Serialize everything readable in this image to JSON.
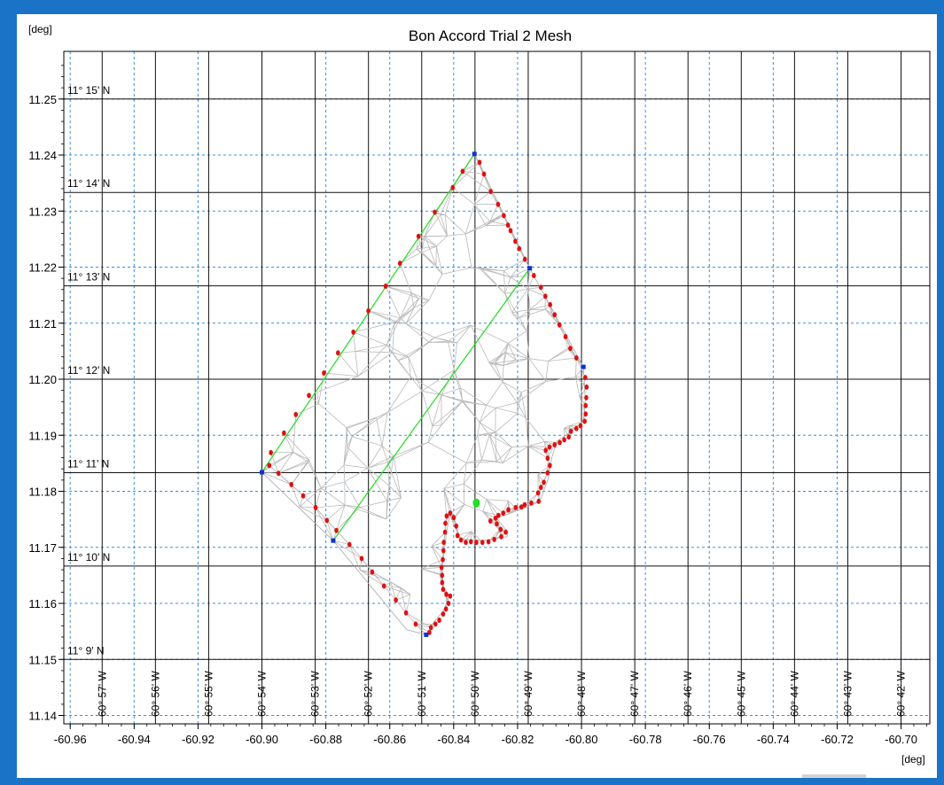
{
  "chart_data": {
    "type": "scatter",
    "title": "Bon Accord Trial 2 Mesh",
    "xlabel": "[deg]",
    "ylabel": "[deg]",
    "xlim": [
      -60.962,
      -60.691
    ],
    "ylim": [
      11.1385,
      11.2585
    ],
    "x_ticks": [
      -60.96,
      -60.94,
      -60.92,
      -60.9,
      -60.88,
      -60.86,
      -60.84,
      -60.82,
      -60.8,
      -60.78,
      -60.76,
      -60.74,
      -60.72,
      -60.7
    ],
    "x_tick_labels": [
      "-60.96",
      "-60.94",
      "-60.92",
      "-60.90",
      "-60.88",
      "-60.86",
      "-60.84",
      "-60.82",
      "-60.80",
      "-60.78",
      "-60.76",
      "-60.74",
      "-60.72",
      "-60.70"
    ],
    "y_ticks": [
      11.14,
      11.15,
      11.16,
      11.17,
      11.18,
      11.19,
      11.2,
      11.21,
      11.22,
      11.23,
      11.24,
      11.25
    ],
    "y_tick_labels": [
      "11.14",
      "11.15",
      "11.16",
      "11.17",
      "11.18",
      "11.19",
      "11.20",
      "11.21",
      "11.22",
      "11.23",
      "11.24",
      "11.25"
    ],
    "grid": true,
    "lat_lines": [
      {
        "value": 11.25,
        "label": "11° 15' N"
      },
      {
        "value": 11.23333,
        "label": "11° 14' N"
      },
      {
        "value": 11.21667,
        "label": "11° 13' N"
      },
      {
        "value": 11.2,
        "label": "11° 12' N"
      },
      {
        "value": 11.18333,
        "label": "11° 11' N"
      },
      {
        "value": 11.16667,
        "label": "11° 10' N"
      },
      {
        "value": 11.15,
        "label": "11° 9' N"
      }
    ],
    "lon_lines": [
      {
        "value": -60.95,
        "label": "60° 57' W"
      },
      {
        "value": -60.93333,
        "label": "60° 56' W"
      },
      {
        "value": -60.91667,
        "label": "60° 55' W"
      },
      {
        "value": -60.9,
        "label": "60° 54' W"
      },
      {
        "value": -60.88333,
        "label": "60° 53' W"
      },
      {
        "value": -60.86667,
        "label": "60° 52' W"
      },
      {
        "value": -60.85,
        "label": "60° 51' W"
      },
      {
        "value": -60.83333,
        "label": "60° 50' W"
      },
      {
        "value": -60.81667,
        "label": "60° 49' W"
      },
      {
        "value": -60.8,
        "label": "60° 48' W"
      },
      {
        "value": -60.78333,
        "label": "60° 47' W"
      },
      {
        "value": -60.76667,
        "label": "60° 46' W"
      },
      {
        "value": -60.75,
        "label": "60° 45' W"
      },
      {
        "value": -60.73333,
        "label": "60° 44' W"
      },
      {
        "value": -60.71667,
        "label": "60° 43' W"
      },
      {
        "value": -60.7,
        "label": "60° 42' W"
      }
    ],
    "boundary_green_top": [
      [
        -60.9,
        11.1834
      ],
      [
        -60.8335,
        11.2402
      ]
    ],
    "boundary_green_middle": [
      [
        -60.8777,
        11.1712
      ],
      [
        -60.8162,
        11.2198
      ]
    ],
    "mesh_outline": [
      [
        -60.9,
        11.1834
      ],
      [
        -60.8335,
        11.2402
      ],
      [
        -60.8162,
        11.2198
      ],
      [
        -60.7994,
        11.2022
      ],
      [
        -60.7988,
        11.1965
      ],
      [
        -60.7994,
        11.1925
      ],
      [
        -60.8038,
        11.1904
      ],
      [
        -60.8076,
        11.189
      ],
      [
        -60.8092,
        11.1862
      ],
      [
        -60.8104,
        11.1823
      ],
      [
        -60.8131,
        11.1781
      ],
      [
        -60.8217,
        11.1762
      ],
      [
        -60.8266,
        11.1752
      ],
      [
        -60.8232,
        11.1728
      ],
      [
        -60.8233,
        11.1719
      ],
      [
        -60.8308,
        11.1712
      ],
      [
        -60.8356,
        11.1714
      ],
      [
        -60.838,
        11.1715
      ],
      [
        -60.8412,
        11.1758
      ],
      [
        -60.8422,
        11.1728
      ],
      [
        -60.8436,
        11.1665
      ],
      [
        -60.8432,
        11.163
      ],
      [
        -60.8414,
        11.1613
      ],
      [
        -60.8434,
        11.1585
      ],
      [
        -60.8463,
        11.1566
      ],
      [
        -60.8486,
        11.1544
      ],
      [
        -60.8547,
        11.1553
      ],
      [
        -60.8777,
        11.1712
      ]
    ],
    "blue_nodes": [
      [
        -60.9,
        11.1834
      ],
      [
        -60.8335,
        11.2402
      ],
      [
        -60.8162,
        11.2198
      ],
      [
        -60.7994,
        11.2022
      ],
      [
        -60.8777,
        11.1712
      ],
      [
        -60.8486,
        11.1544
      ]
    ],
    "red_nodes": [
      [
        -60.8972,
        11.1869
      ],
      [
        -60.8931,
        11.1904
      ],
      [
        -60.8894,
        11.1937
      ],
      [
        -60.8853,
        11.1971
      ],
      [
        -60.8806,
        11.2011
      ],
      [
        -60.8762,
        11.2047
      ],
      [
        -60.8714,
        11.2084
      ],
      [
        -60.8667,
        11.2122
      ],
      [
        -60.8613,
        11.2166
      ],
      [
        -60.8568,
        11.2207
      ],
      [
        -60.851,
        11.2255
      ],
      [
        -60.8459,
        11.2298
      ],
      [
        -60.8403,
        11.2342
      ],
      [
        -60.8372,
        11.2371
      ],
      [
        -60.8319,
        11.2387
      ],
      [
        -60.8305,
        11.2366
      ],
      [
        -60.8284,
        11.2335
      ],
      [
        -60.8261,
        11.2312
      ],
      [
        -60.8243,
        11.2292
      ],
      [
        -60.823,
        11.2275
      ],
      [
        -60.8222,
        11.2265
      ],
      [
        -60.8207,
        11.2246
      ],
      [
        -60.8195,
        11.2233
      ],
      [
        -60.8177,
        11.2214
      ],
      [
        -60.8149,
        11.2185
      ],
      [
        -60.8127,
        11.2164
      ],
      [
        -60.8113,
        11.2148
      ],
      [
        -60.8098,
        11.2133
      ],
      [
        -60.8084,
        11.2115
      ],
      [
        -60.8069,
        11.2097
      ],
      [
        -60.805,
        11.2076
      ],
      [
        -60.8035,
        11.2055
      ],
      [
        -60.8016,
        11.2038
      ],
      [
        -60.7988,
        11.2003
      ],
      [
        -60.7984,
        11.1986
      ],
      [
        -60.7985,
        11.1967
      ],
      [
        -60.7987,
        11.1953
      ],
      [
        -60.7987,
        11.1938
      ],
      [
        -60.799,
        11.1925
      ],
      [
        -60.8003,
        11.1917
      ],
      [
        -60.8016,
        11.1912
      ],
      [
        -60.8033,
        11.1907
      ],
      [
        -60.804,
        11.1897
      ],
      [
        -60.8054,
        11.1892
      ],
      [
        -60.8068,
        11.1887
      ],
      [
        -60.8084,
        11.1883
      ],
      [
        -60.81,
        11.1879
      ],
      [
        -60.8112,
        11.1873
      ],
      [
        -60.8106,
        11.1859
      ],
      [
        -60.8099,
        11.1846
      ],
      [
        -60.8106,
        11.1833
      ],
      [
        -60.8118,
        11.1816
      ],
      [
        -60.8127,
        11.1807
      ],
      [
        -60.8136,
        11.1797
      ],
      [
        -60.8134,
        11.1782
      ],
      [
        -60.8157,
        11.1779
      ],
      [
        -60.8178,
        11.1776
      ],
      [
        -60.8188,
        11.1772
      ],
      [
        -60.8206,
        11.1771
      ],
      [
        -60.8229,
        11.1767
      ],
      [
        -60.8245,
        11.1761
      ],
      [
        -60.826,
        11.1757
      ],
      [
        -60.8269,
        11.1752
      ],
      [
        -60.8285,
        11.1747
      ],
      [
        -60.8265,
        11.1742
      ],
      [
        -60.8253,
        11.1732
      ],
      [
        -60.8237,
        11.1727
      ],
      [
        -60.8251,
        11.1719
      ],
      [
        -60.8273,
        11.1714
      ],
      [
        -60.8291,
        11.171
      ],
      [
        -60.831,
        11.1709
      ],
      [
        -60.8329,
        11.1709
      ],
      [
        -60.8346,
        11.171
      ],
      [
        -60.8362,
        11.1709
      ],
      [
        -60.8377,
        11.1713
      ],
      [
        -60.8388,
        11.1721
      ],
      [
        -60.8392,
        11.1738
      ],
      [
        -60.84,
        11.1753
      ],
      [
        -60.8411,
        11.1761
      ],
      [
        -60.8422,
        11.1756
      ],
      [
        -60.8426,
        11.1743
      ],
      [
        -60.8427,
        11.1727
      ],
      [
        -60.8431,
        11.1709
      ],
      [
        -60.8432,
        11.1694
      ],
      [
        -60.8434,
        11.1678
      ],
      [
        -60.8438,
        11.1664
      ],
      [
        -60.8436,
        11.165
      ],
      [
        -60.8436,
        11.1637
      ],
      [
        -60.8433,
        11.1625
      ],
      [
        -60.8423,
        11.1616
      ],
      [
        -60.8411,
        11.1613
      ],
      [
        -60.8416,
        11.16
      ],
      [
        -60.8424,
        11.159
      ],
      [
        -60.8433,
        11.1581
      ],
      [
        -60.8445,
        11.157
      ],
      [
        -60.8457,
        11.1563
      ],
      [
        -60.8471,
        11.1557
      ],
      [
        -60.8476,
        11.1548
      ],
      [
        -60.8519,
        11.1563
      ],
      [
        -60.8549,
        11.1583
      ],
      [
        -60.8581,
        11.1606
      ],
      [
        -60.8618,
        11.1631
      ],
      [
        -60.8655,
        11.1656
      ],
      [
        -60.8688,
        11.168
      ],
      [
        -60.8726,
        11.1705
      ],
      [
        -60.8767,
        11.173
      ],
      [
        -60.8797,
        11.1748
      ],
      [
        -60.8832,
        11.1771
      ],
      [
        -60.8871,
        11.1792
      ],
      [
        -60.8908,
        11.1812
      ],
      [
        -60.8948,
        11.1832
      ],
      [
        -60.8977,
        11.1846
      ]
    ],
    "green_marker": [
      -60.8329,
      11.1779
    ]
  }
}
